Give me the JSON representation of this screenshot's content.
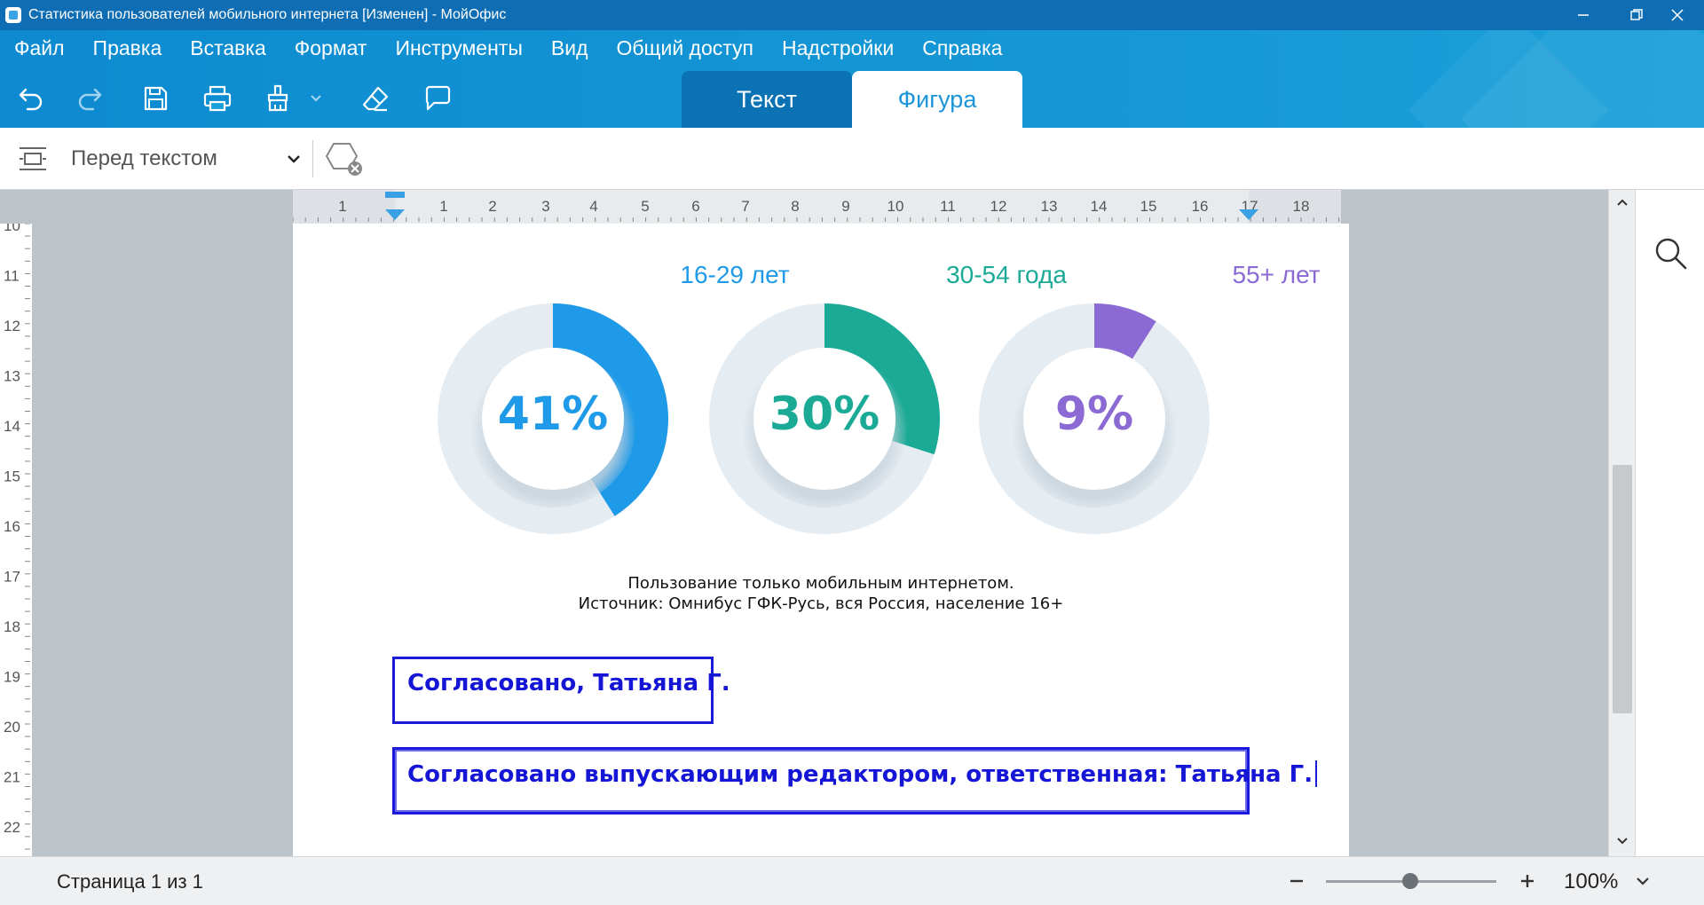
{
  "window": {
    "title": "Статистика пользователей мобильного интернета [Изменен] - МойОфис",
    "app_icon": "myoffice-logo-icon"
  },
  "menu": {
    "items": [
      "Файл",
      "Правка",
      "Вставка",
      "Формат",
      "Инструменты",
      "Вид",
      "Общий доступ",
      "Надстройки",
      "Справка"
    ]
  },
  "toolbar": {
    "icons": [
      "undo-icon",
      "redo-icon",
      "save-icon",
      "print-icon",
      "format-painter-icon",
      "chevron-down-icon",
      "eraser-icon",
      "comment-icon"
    ]
  },
  "context_tabs": [
    {
      "label": "Текст",
      "active": false
    },
    {
      "label": "Фигура",
      "active": true
    }
  ],
  "format_bar": {
    "wrap_value": "Перед текстом",
    "wrap_icon": "text-wrap-icon",
    "shape_icon": "shape-remove-icon"
  },
  "ruler": {
    "horizontal": [
      "1",
      "1",
      "2",
      "3",
      "4",
      "5",
      "6",
      "7",
      "8",
      "9",
      "10",
      "11",
      "12",
      "13",
      "14",
      "15",
      "16",
      "17",
      "18"
    ],
    "vertical": [
      "10",
      "11",
      "12",
      "13",
      "14",
      "15",
      "16",
      "17",
      "18",
      "19",
      "20",
      "21",
      "22"
    ]
  },
  "document": {
    "charts": [
      {
        "label": "16-29 лет",
        "percent_text": "41%",
        "value": 41,
        "color": "#1e9ae8"
      },
      {
        "label": "30-54 года",
        "percent_text": "30%",
        "value": 30,
        "color": "#1aaa96"
      },
      {
        "label": "55+ лет",
        "percent_text": "9%",
        "value": 9,
        "color": "#8c6ad4"
      }
    ],
    "caption_line1": "Пользование только мобильным интернетом.",
    "caption_line2": "Источник: Омнибус ГФК-Русь, вся Россия, население 16+",
    "textbox1": "Согласовано, Татьяна Г.",
    "textbox2": "Согласовано выпускающим редактором, ответственная: Татьяна Г.",
    "donut_track_color": "#e6edf2"
  },
  "status": {
    "page_count": "Страница 1 из 1",
    "zoom": "100%",
    "zoom_level_percent": 100
  }
}
